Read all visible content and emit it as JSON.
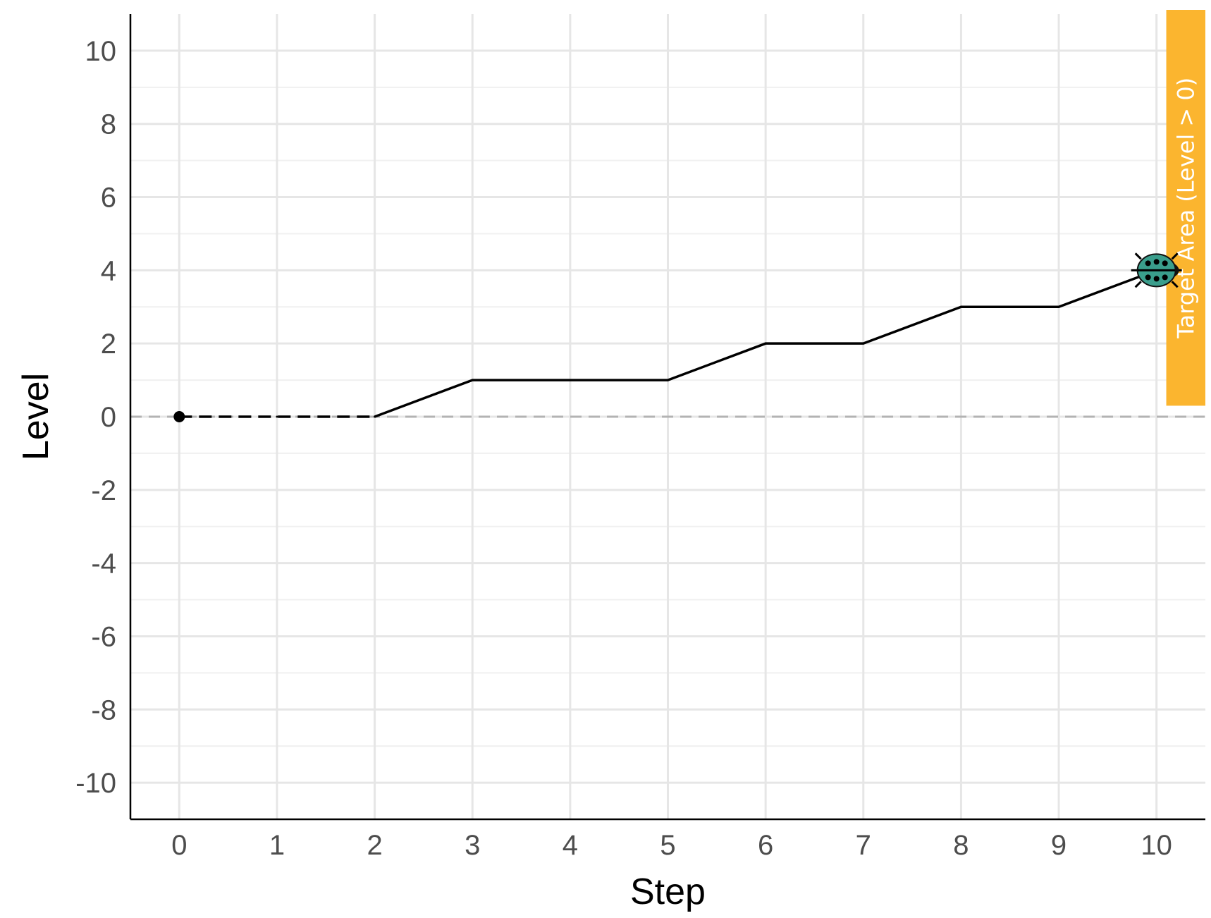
{
  "chart_data": {
    "type": "line",
    "title": "",
    "xlabel": "Step",
    "ylabel": "Level",
    "xlim": [
      -0.5,
      10.5
    ],
    "ylim": [
      -11,
      11
    ],
    "x_ticks": [
      "0",
      "1",
      "2",
      "3",
      "4",
      "5",
      "6",
      "7",
      "8",
      "9",
      "10"
    ],
    "y_ticks": [
      "10",
      "8",
      "6",
      "4",
      "2",
      "0",
      "-2",
      "-4",
      "-6",
      "-8",
      "-10"
    ],
    "x_tick_values": [
      0,
      1,
      2,
      3,
      4,
      5,
      6,
      7,
      8,
      9,
      10
    ],
    "y_tick_values": [
      10,
      8,
      6,
      4,
      2,
      0,
      -2,
      -4,
      -6,
      -8,
      -10
    ],
    "grid": true,
    "x": [
      0,
      1,
      2,
      3,
      4,
      5,
      6,
      7,
      8,
      9,
      10
    ],
    "y": [
      0,
      0,
      0,
      1,
      1,
      1,
      2,
      2,
      3,
      3,
      4
    ],
    "dashed_until_x": 2,
    "reference_line": {
      "y": 0,
      "style": "dashed",
      "color": "#b3b3b3"
    },
    "start_point": {
      "x": 0,
      "y": 0
    },
    "marker": {
      "x": 10,
      "y": 4,
      "icon": "ladybug-icon",
      "color": "#3a9e8c"
    },
    "target_area": {
      "label": "Target Area (Level > 0)",
      "color": "#fbb52f",
      "y_range": [
        0.3,
        11
      ]
    },
    "line_color": "#000000"
  }
}
